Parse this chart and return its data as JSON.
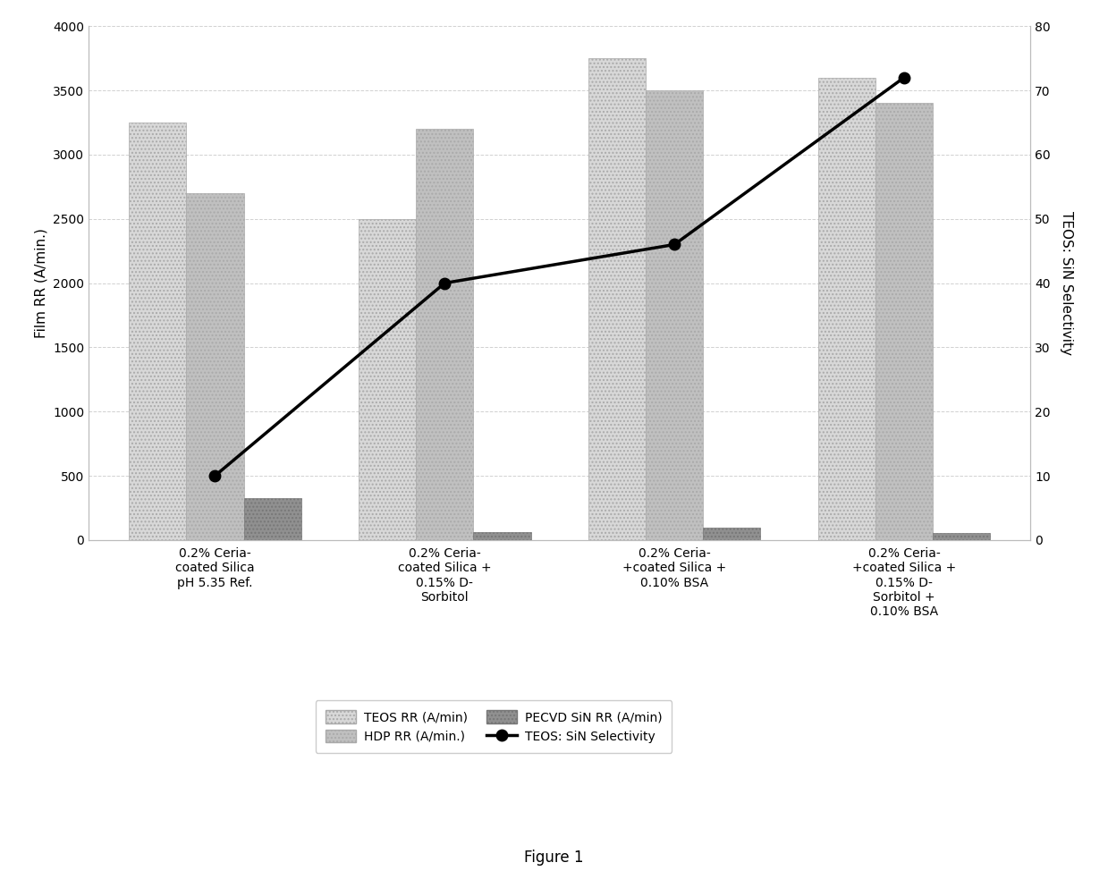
{
  "categories": [
    "0.2% Ceria-\ncoated Silica\npH 5.35 Ref.",
    "0.2% Ceria-\ncoated Silica +\n0.15% D-\nSorbitol",
    "0.2% Ceria-\n+coated Silica +\n0.10% BSA",
    "0.2% Ceria-\n+coated Silica +\n0.15% D-\nSorbitol +\n0.10% BSA"
  ],
  "teos_rr": [
    3250,
    2500,
    3750,
    3600
  ],
  "hdp_rr": [
    2700,
    3200,
    3500,
    3400
  ],
  "pecvd_sin_rr": [
    325,
    65,
    100,
    55
  ],
  "selectivity": [
    10,
    40,
    46,
    72
  ],
  "ylabel_left": "Film RR (A/min.)",
  "ylabel_right": "TEOS: SiN Selectivity",
  "ylim_left": [
    0,
    4000
  ],
  "ylim_right": [
    0,
    80
  ],
  "yticks_left": [
    0,
    500,
    1000,
    1500,
    2000,
    2500,
    3000,
    3500,
    4000
  ],
  "yticks_right": [
    0,
    10,
    20,
    30,
    40,
    50,
    60,
    70,
    80
  ],
  "bar_color_teos": "#d8d8d8",
  "bar_color_hdp": "#c0c0c0",
  "bar_color_pecvd": "#909090",
  "line_color": "#000000",
  "figure_caption": "Figure 1",
  "legend_items": [
    "TEOS RR (A/min)",
    "HDP RR (A/min.)",
    "PECVD SiN RR (A/min)",
    "TEOS: SiN Selectivity"
  ],
  "background_color": "#ffffff",
  "grid_color": "#cccccc",
  "bar_width": 0.25,
  "xlabel_fontsize": 10,
  "ylabel_fontsize": 11,
  "tick_fontsize": 10,
  "legend_fontsize": 10
}
